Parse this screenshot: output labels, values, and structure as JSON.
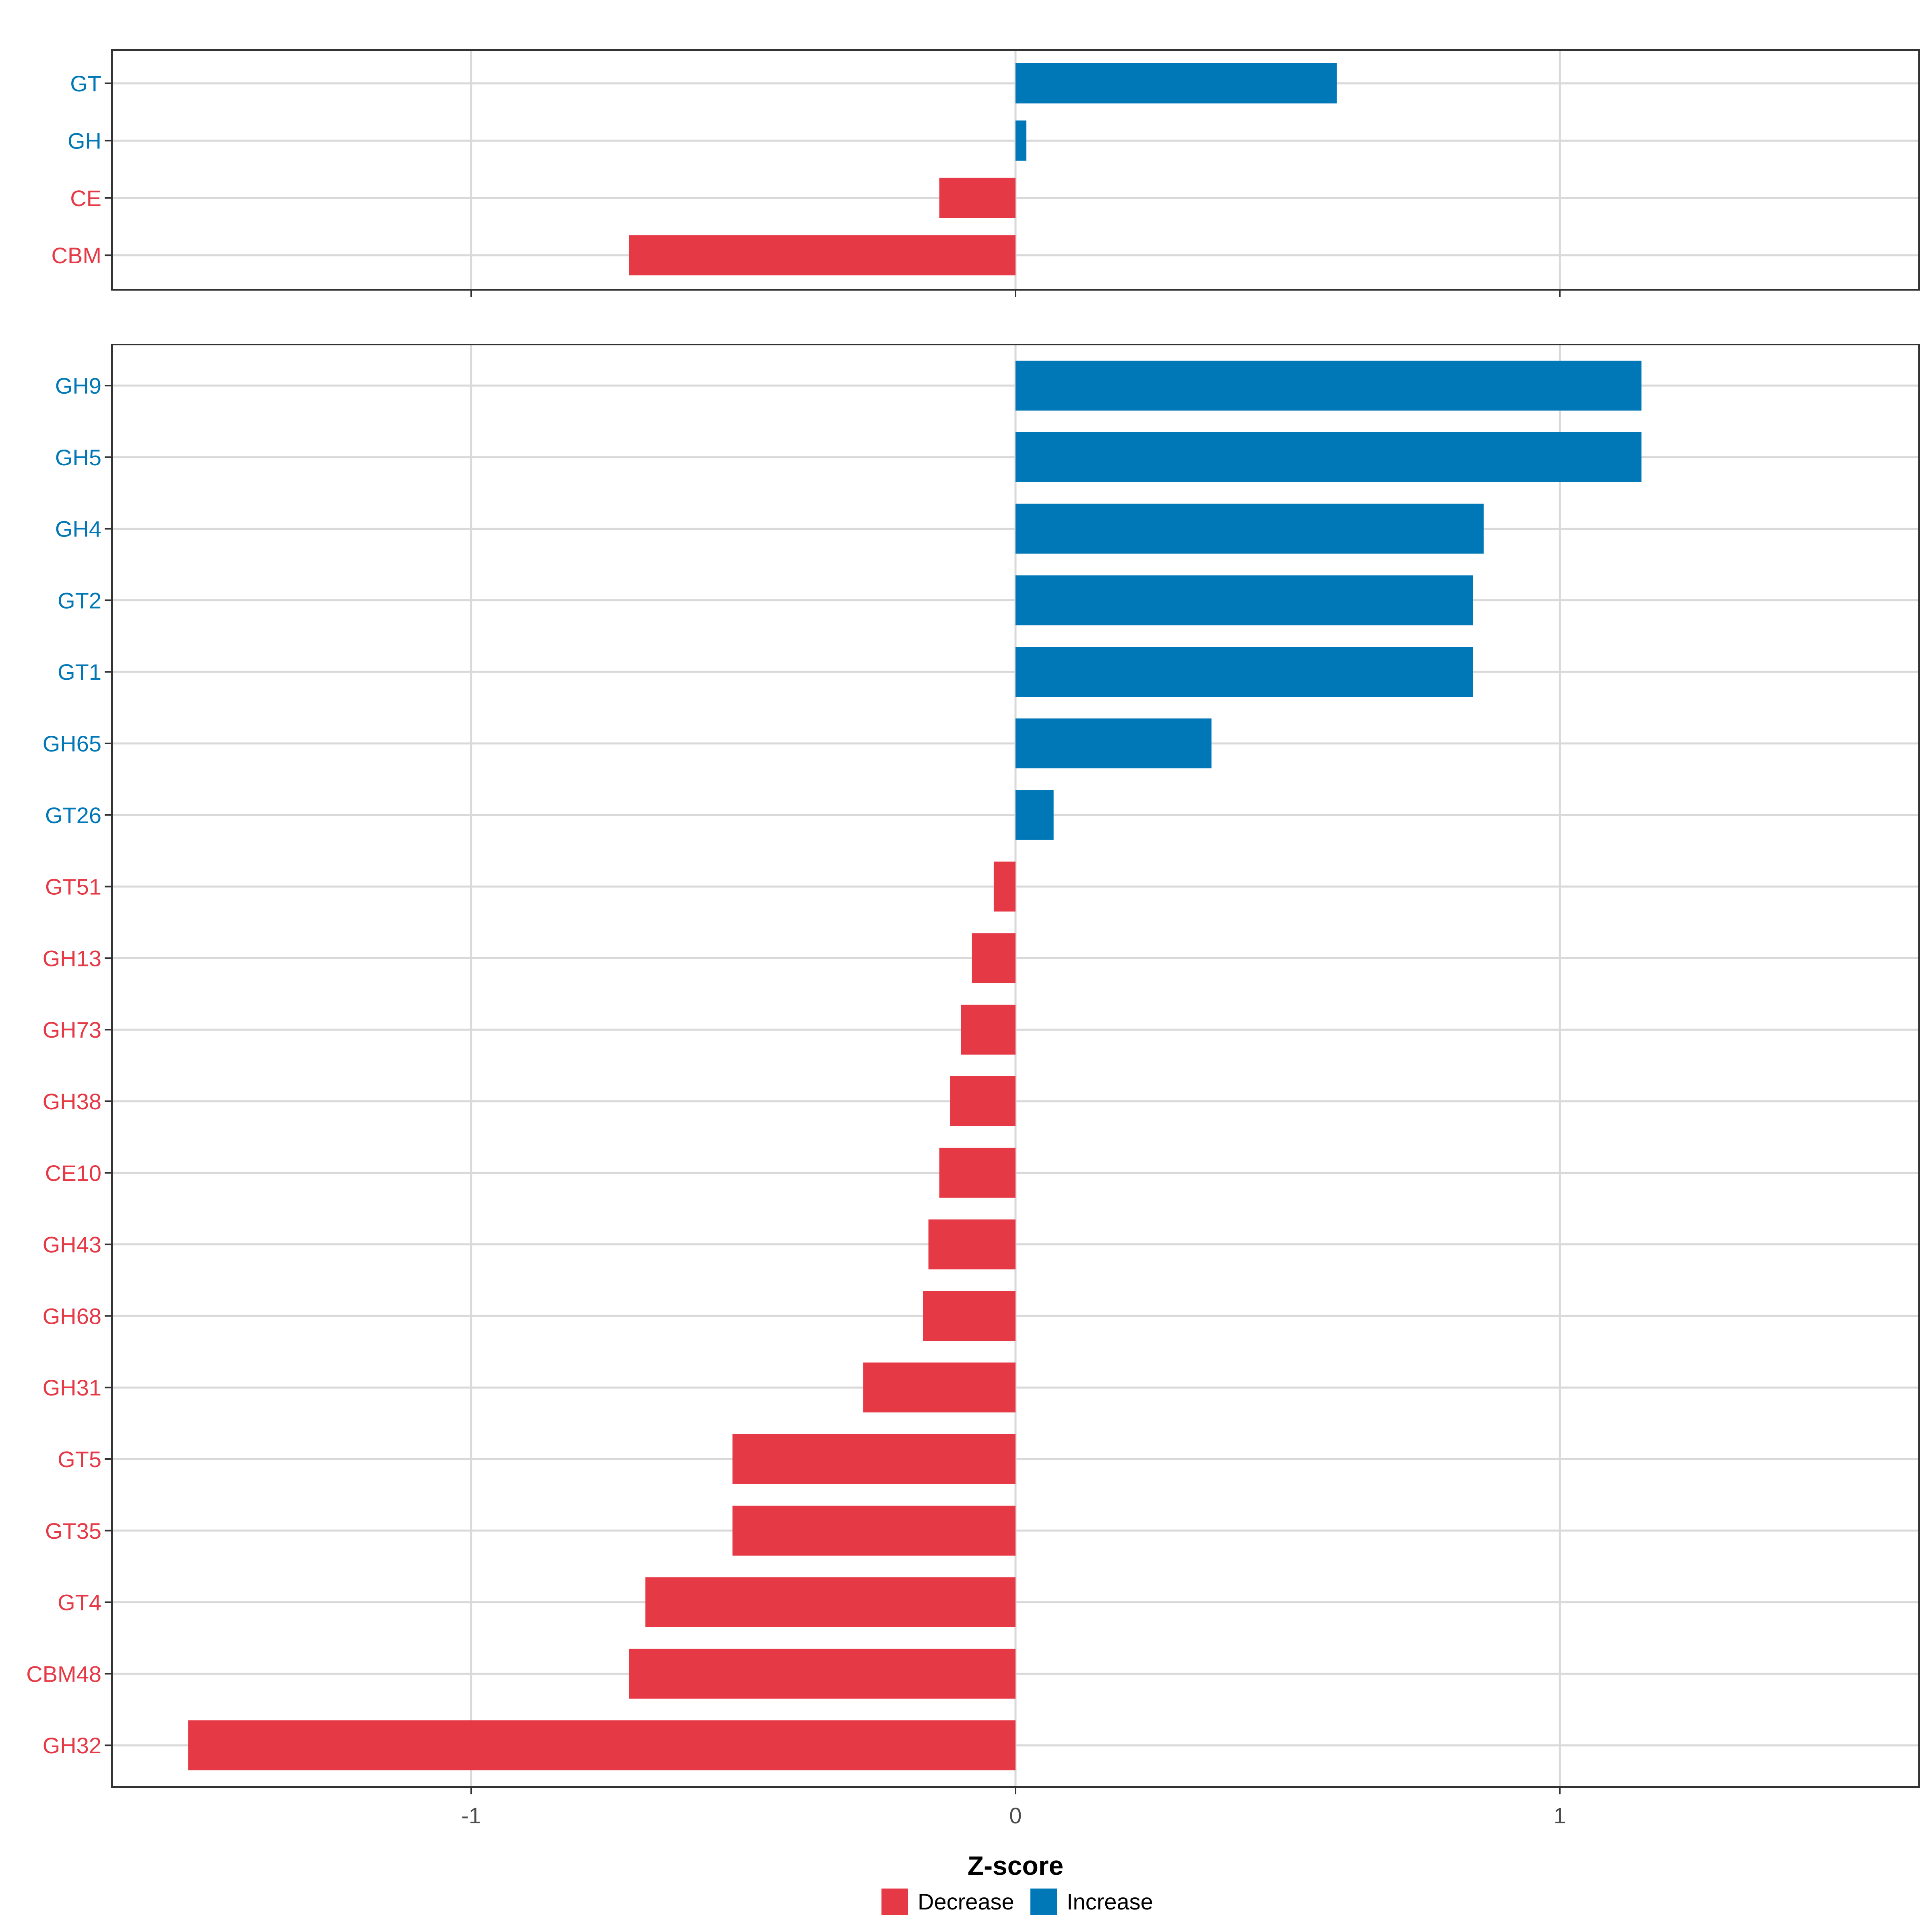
{
  "chart_data": [
    {
      "type": "bar",
      "orientation": "horizontal",
      "panel": "top",
      "categories": [
        "GT",
        "GH",
        "CE",
        "CBM"
      ],
      "values": [
        0.59,
        0.02,
        -0.14,
        -0.71
      ],
      "direction": [
        "Increase",
        "Increase",
        "Decrease",
        "Decrease"
      ],
      "xlim": [
        -1.66,
        1.66
      ],
      "xticks": [
        -1,
        0,
        1
      ],
      "grid": true
    },
    {
      "type": "bar",
      "orientation": "horizontal",
      "panel": "bottom",
      "categories": [
        "GH9",
        "GH5",
        "GH4",
        "GT2",
        "GT1",
        "GH65",
        "GT26",
        "GT51",
        "GH13",
        "GH73",
        "GH38",
        "CE10",
        "GH43",
        "GH68",
        "GH31",
        "GT5",
        "GT35",
        "GT4",
        "CBM48",
        "GH32"
      ],
      "values": [
        1.15,
        1.15,
        0.86,
        0.84,
        0.84,
        0.36,
        0.07,
        -0.04,
        -0.08,
        -0.1,
        -0.12,
        -0.14,
        -0.16,
        -0.17,
        -0.28,
        -0.52,
        -0.52,
        -0.68,
        -0.71,
        -1.52
      ],
      "direction": [
        "Increase",
        "Increase",
        "Increase",
        "Increase",
        "Increase",
        "Increase",
        "Increase",
        "Decrease",
        "Decrease",
        "Decrease",
        "Decrease",
        "Decrease",
        "Decrease",
        "Decrease",
        "Decrease",
        "Decrease",
        "Decrease",
        "Decrease",
        "Decrease",
        "Decrease"
      ],
      "xlim": [
        -1.66,
        1.66
      ],
      "xticks": [
        -1,
        0,
        1
      ],
      "xlabel": "Z-score",
      "grid": true
    }
  ],
  "x_tick_labels": [
    "-1",
    "0",
    "1"
  ],
  "legend": {
    "position": "bottom",
    "items": [
      {
        "label": "Decrease",
        "color": "#E63946"
      },
      {
        "label": "Increase",
        "color": "#0077B6"
      }
    ]
  },
  "colors": {
    "Decrease": "#E63946",
    "Increase": "#0077B6",
    "grid": "#d9d9d9",
    "frame": "#333333"
  }
}
